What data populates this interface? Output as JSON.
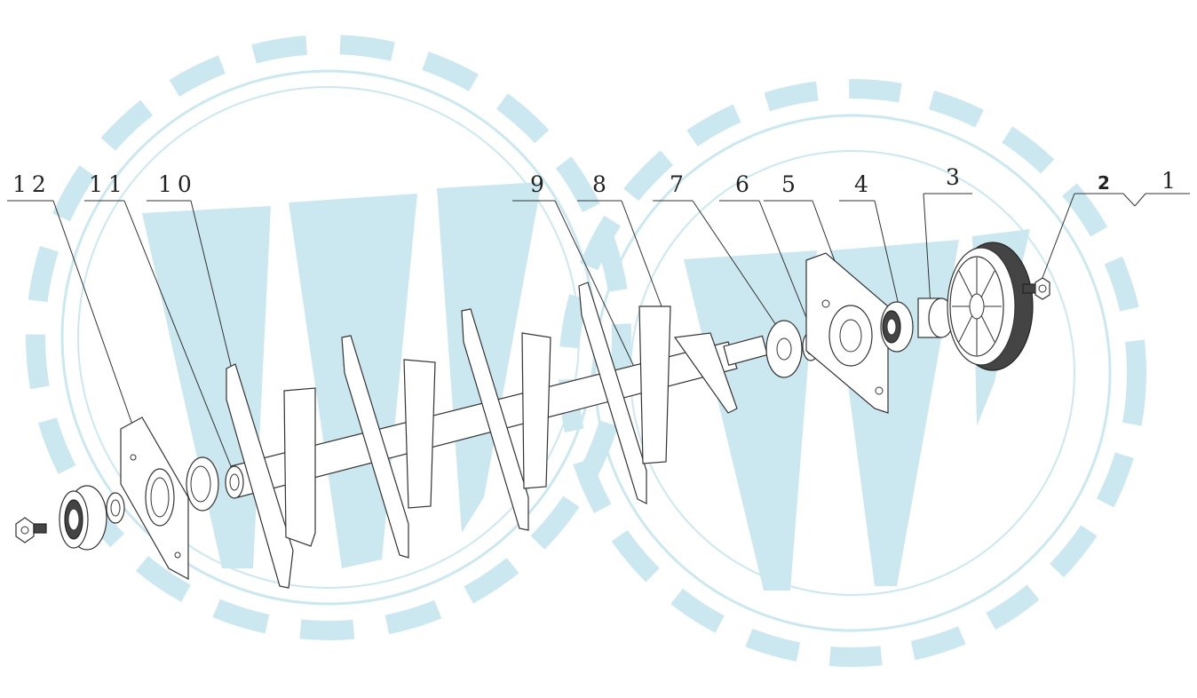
{
  "diagram": {
    "callouts": [
      {
        "id": "1",
        "label": "1"
      },
      {
        "id": "2",
        "label": "2"
      },
      {
        "id": "3",
        "label": "3"
      },
      {
        "id": "4",
        "label": "4"
      },
      {
        "id": "5",
        "label": "5"
      },
      {
        "id": "6",
        "label": "6"
      },
      {
        "id": "7",
        "label": "7"
      },
      {
        "id": "8",
        "label": "8"
      },
      {
        "id": "9",
        "label": "9"
      },
      {
        "id": "10",
        "label": "10"
      },
      {
        "id": "11",
        "label": "11"
      },
      {
        "id": "12",
        "label": "12"
      }
    ]
  },
  "watermark": {
    "logo": "WW",
    "color": "#cbe8f1",
    "outline_color": "#cbe8f1"
  },
  "colors": {
    "line": "#333333",
    "background": "#ffffff"
  }
}
